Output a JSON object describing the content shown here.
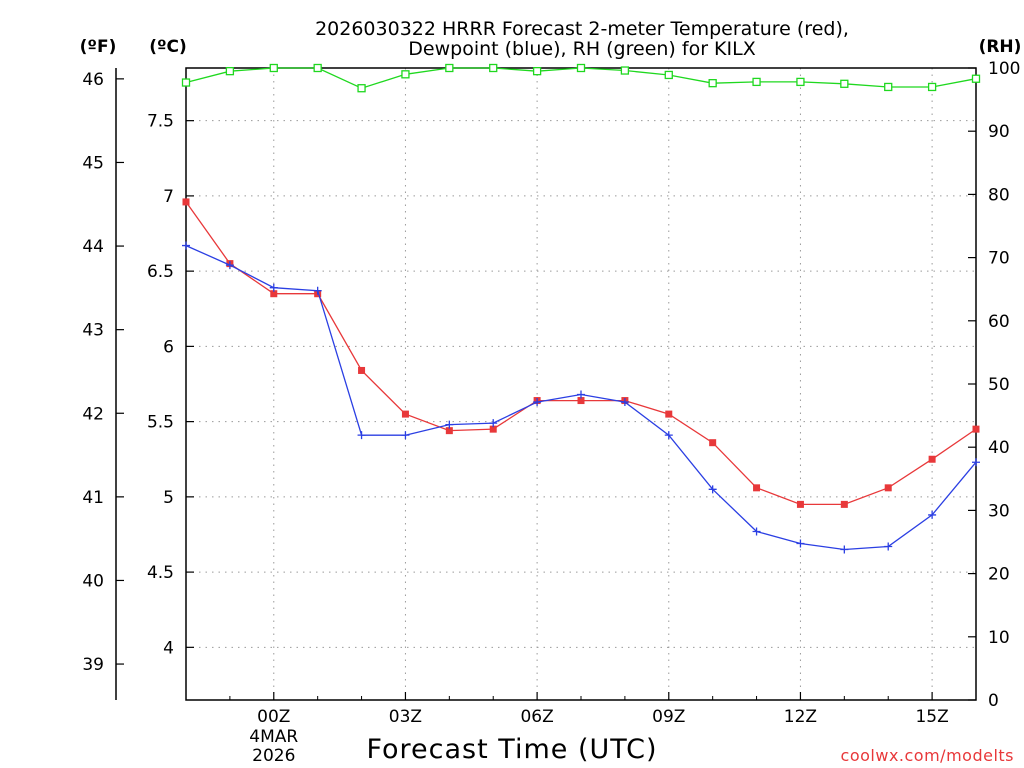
{
  "chart_data": {
    "type": "line",
    "title_lines": [
      "2026030322 HRRR Forecast 2-meter Temperature (red),",
      "Dewpoint (blue), RH (green) for KILX"
    ],
    "xlabel": "Forecast Time (UTC)",
    "credit": "coolwx.com/modelts",
    "unit_labels": {
      "fahrenheit": "(ºF)",
      "celsius": "(ºC)",
      "rh": "(RH)"
    },
    "x": [
      -2,
      -1,
      0,
      1,
      2,
      3,
      4,
      5,
      6,
      7,
      8,
      9,
      10,
      11,
      12,
      13,
      14,
      15,
      16
    ],
    "xlim": [
      -2,
      16
    ],
    "x_ticks": [
      {
        "x": 0,
        "label": "00Z",
        "sublabels": [
          "4MAR",
          "2026"
        ]
      },
      {
        "x": 3,
        "label": "03Z"
      },
      {
        "x": 6,
        "label": "06Z"
      },
      {
        "x": 9,
        "label": "09Z"
      },
      {
        "x": 12,
        "label": "12Z"
      },
      {
        "x": 15,
        "label": "15Z"
      }
    ],
    "celsius_axis": {
      "ylim": [
        3.65,
        7.85
      ],
      "ticks": [
        {
          "value": 4,
          "label": "4"
        },
        {
          "value": 4.5,
          "label": "4.5"
        },
        {
          "value": 5,
          "label": "5"
        },
        {
          "value": 5.5,
          "label": "5.5"
        },
        {
          "value": 6,
          "label": "6"
        },
        {
          "value": 6.5,
          "label": "6.5"
        },
        {
          "value": 7,
          "label": "7"
        },
        {
          "value": 7.5,
          "label": "7.5"
        }
      ]
    },
    "fahrenheit_axis": {
      "ticks": [
        {
          "value": 39,
          "label": "39"
        },
        {
          "value": 40,
          "label": "40"
        },
        {
          "value": 41,
          "label": "41"
        },
        {
          "value": 42,
          "label": "42"
        },
        {
          "value": 43,
          "label": "43"
        },
        {
          "value": 44,
          "label": "44"
        },
        {
          "value": 45,
          "label": "45"
        },
        {
          "value": 46,
          "label": "46"
        }
      ]
    },
    "rh_axis": {
      "ylim": [
        0,
        100
      ],
      "ticks": [
        {
          "value": 0,
          "label": "0"
        },
        {
          "value": 10,
          "label": "10"
        },
        {
          "value": 20,
          "label": "20"
        },
        {
          "value": 30,
          "label": "30"
        },
        {
          "value": 40,
          "label": "40"
        },
        {
          "value": 50,
          "label": "50"
        },
        {
          "value": 60,
          "label": "60"
        },
        {
          "value": 70,
          "label": "70"
        },
        {
          "value": 80,
          "label": "80"
        },
        {
          "value": 90,
          "label": "90"
        },
        {
          "value": 100,
          "label": "100"
        }
      ]
    },
    "series": [
      {
        "name": "Temperature",
        "axis": "celsius",
        "color": "#e8383a",
        "marker": "filled-square",
        "values": [
          6.96,
          6.55,
          6.35,
          6.35,
          5.84,
          5.55,
          5.44,
          5.45,
          5.64,
          5.64,
          5.64,
          5.55,
          5.36,
          5.06,
          4.95,
          4.95,
          5.06,
          5.25,
          5.45
        ]
      },
      {
        "name": "Dewpoint",
        "axis": "celsius",
        "color": "#2b3fe3",
        "marker": "plus",
        "values": [
          6.67,
          6.54,
          6.39,
          6.37,
          5.41,
          5.41,
          5.48,
          5.49,
          5.63,
          5.68,
          5.63,
          5.41,
          5.05,
          4.77,
          4.69,
          4.65,
          4.67,
          4.88,
          5.23
        ]
      },
      {
        "name": "RH",
        "axis": "rh",
        "color": "#1fd81f",
        "marker": "open-square",
        "values": [
          97.7,
          99.5,
          100,
          100,
          96.8,
          99.0,
          100,
          100,
          99.5,
          100,
          99.6,
          98.9,
          97.6,
          97.8,
          97.8,
          97.5,
          97.0,
          97.0,
          98.3
        ]
      }
    ]
  }
}
